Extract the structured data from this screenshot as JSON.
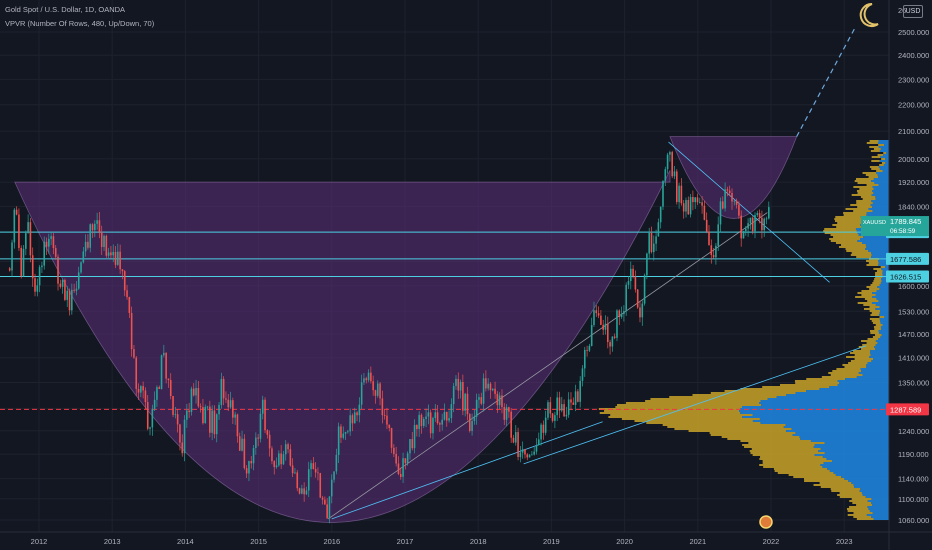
{
  "legend": {
    "symbol_line": "Gold Spot / U.S. Dollar, 1D, OANDA",
    "indicator_line": "VPVR (Number Of Rows, 480, Up/Down, 70)"
  },
  "currency_button": "USD",
  "icons": {
    "moon": "crescent-moon-icon",
    "event": "event-marker-icon"
  },
  "colors": {
    "background": "#131722",
    "up_candle": "#26a69a",
    "down_candle": "#ef5350",
    "cup_fill": "#5c2e7a",
    "level_line": "#4dd0e1",
    "poc_line": "#f23645",
    "volume_up": "#1e88e5",
    "volume_down": "#c9a227"
  },
  "chart_data": {
    "type": "candlestick",
    "symbol": "XAUUSD",
    "timeframe": "1D",
    "x_axis": {
      "range": [
        "2011-07",
        "2023-07"
      ],
      "tick_labels": [
        "2012",
        "2013",
        "2014",
        "2015",
        "2016",
        "2017",
        "2018",
        "2019",
        "2020",
        "2021",
        "2022",
        "2023"
      ]
    },
    "y_axis": {
      "range": [
        1040,
        2600
      ],
      "scale": "log",
      "tick_labels": [
        "1060.000",
        "1100.000",
        "1140.000",
        "1190.000",
        "1240.000",
        "1290.000",
        "1350.000",
        "1410.000",
        "1470.000",
        "1530.000",
        "1600.000",
        "1670.000",
        "1760.000",
        "1840.000",
        "1920.000",
        "2000.000",
        "2100.000",
        "2200.000",
        "2300.000",
        "2400.000",
        "2500.000",
        "26"
      ]
    },
    "series": [
      {
        "values_approx": [
          [
            2011.6,
            1650
          ],
          [
            2011.67,
            1880
          ],
          [
            2011.75,
            1620
          ],
          [
            2011.85,
            1760
          ],
          [
            2011.95,
            1580
          ],
          [
            2012.05,
            1700
          ],
          [
            2012.15,
            1780
          ],
          [
            2012.3,
            1590
          ],
          [
            2012.45,
            1560
          ],
          [
            2012.55,
            1610
          ],
          [
            2012.7,
            1770
          ],
          [
            2012.8,
            1780
          ],
          [
            2012.95,
            1690
          ],
          [
            2013.05,
            1680
          ],
          [
            2013.2,
            1580
          ],
          [
            2013.3,
            1380
          ],
          [
            2013.45,
            1290
          ],
          [
            2013.5,
            1220
          ],
          [
            2013.6,
            1330
          ],
          [
            2013.7,
            1410
          ],
          [
            2013.85,
            1280
          ],
          [
            2013.95,
            1210
          ],
          [
            2014.1,
            1330
          ],
          [
            2014.2,
            1290
          ],
          [
            2014.4,
            1250
          ],
          [
            2014.5,
            1340
          ],
          [
            2014.65,
            1280
          ],
          [
            2014.85,
            1160
          ],
          [
            2014.95,
            1200
          ],
          [
            2015.05,
            1300
          ],
          [
            2015.2,
            1180
          ],
          [
            2015.4,
            1210
          ],
          [
            2015.55,
            1090
          ],
          [
            2015.75,
            1180
          ],
          [
            2015.92,
            1060
          ],
          [
            2016.1,
            1230
          ],
          [
            2016.25,
            1260
          ],
          [
            2016.45,
            1340
          ],
          [
            2016.55,
            1360
          ],
          [
            2016.75,
            1260
          ],
          [
            2016.92,
            1130
          ],
          [
            2017.05,
            1220
          ],
          [
            2017.2,
            1250
          ],
          [
            2017.45,
            1260
          ],
          [
            2017.6,
            1290
          ],
          [
            2017.7,
            1350
          ],
          [
            2017.9,
            1260
          ],
          [
            2018.1,
            1350
          ],
          [
            2018.3,
            1310
          ],
          [
            2018.45,
            1250
          ],
          [
            2018.62,
            1170
          ],
          [
            2018.8,
            1230
          ],
          [
            2018.95,
            1280
          ],
          [
            2019.15,
            1300
          ],
          [
            2019.3,
            1280
          ],
          [
            2019.45,
            1400
          ],
          [
            2019.6,
            1530
          ],
          [
            2019.8,
            1470
          ],
          [
            2019.95,
            1520
          ],
          [
            2020.1,
            1640
          ],
          [
            2020.2,
            1480
          ],
          [
            2020.3,
            1700
          ],
          [
            2020.45,
            1780
          ],
          [
            2020.55,
            1970
          ],
          [
            2020.6,
            2060
          ],
          [
            2020.7,
            1900
          ],
          [
            2020.85,
            1820
          ],
          [
            2020.95,
            1880
          ],
          [
            2021.05,
            1830
          ],
          [
            2021.2,
            1680
          ],
          [
            2021.35,
            1880
          ],
          [
            2021.45,
            1890
          ],
          [
            2021.55,
            1790
          ],
          [
            2021.62,
            1730
          ],
          [
            2021.7,
            1760
          ],
          [
            2021.8,
            1790
          ],
          [
            2021.9,
            1780
          ],
          [
            2021.97,
            1850
          ]
        ]
      }
    ],
    "horizontal_levels": [
      {
        "value": 1758.561,
        "label": "1758.561"
      },
      {
        "value": 1677.586,
        "label": "1677.586"
      },
      {
        "value": 1626.515,
        "label": "1626.515"
      },
      {
        "value": 1287.589,
        "label": "1287.589",
        "style": "dashed"
      }
    ],
    "last_price": {
      "symbol_label": "XAUUSD",
      "value": "1789.845",
      "countdown": "06:58:59"
    },
    "patterns": [
      "cup-and-handle"
    ],
    "volume_profile": {
      "rows": 480,
      "placement": "right"
    },
    "grid": true
  }
}
